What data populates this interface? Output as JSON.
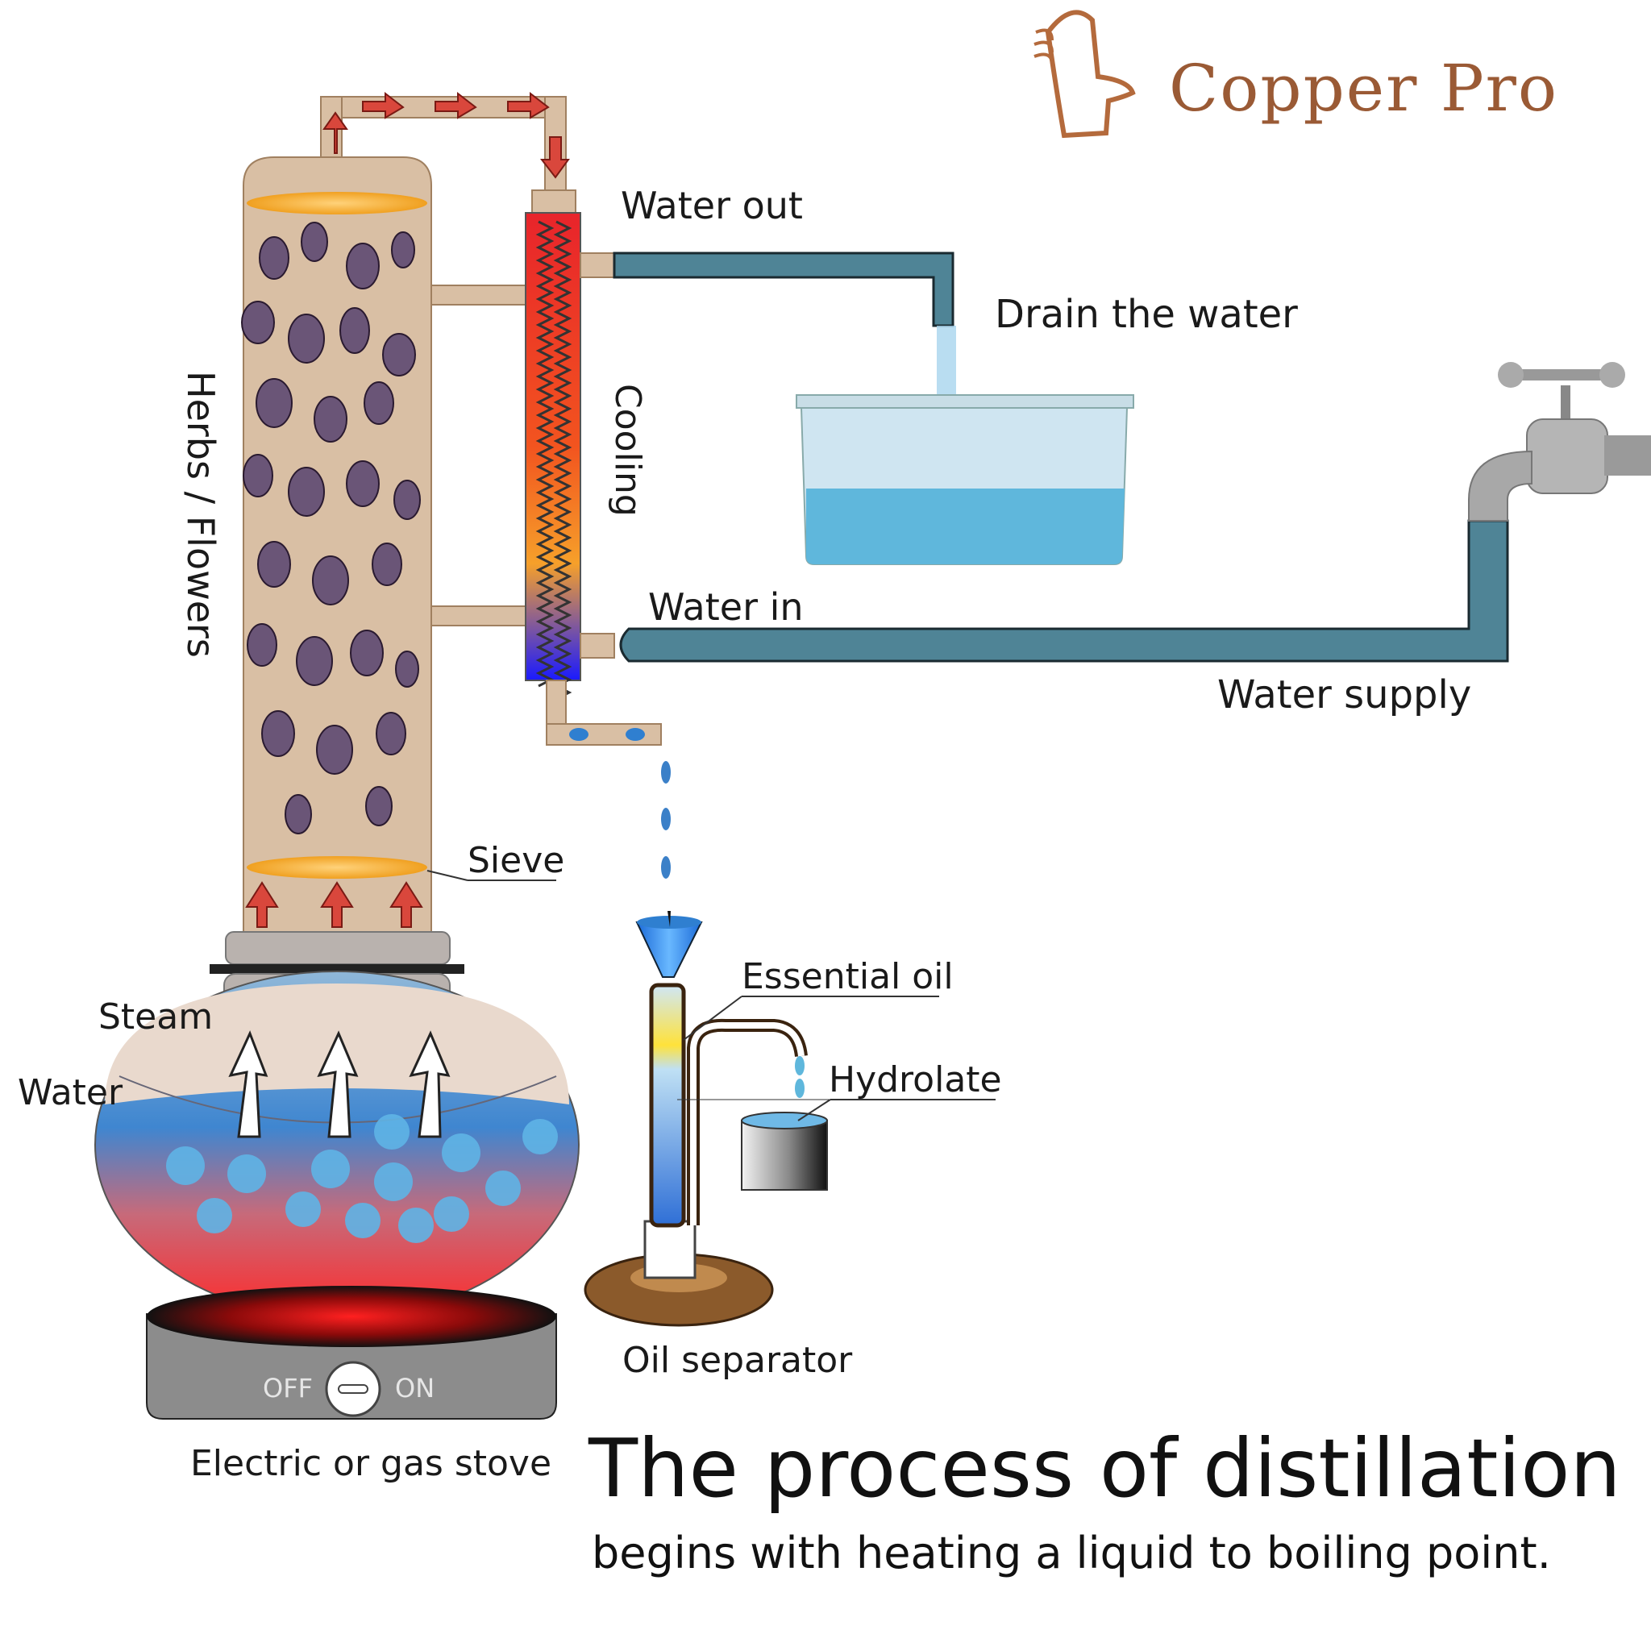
{
  "brand": {
    "name": "Copper Pro"
  },
  "labels": {
    "herbs": "Herbs / Flowers",
    "cooling": "Cooling",
    "water_out": "Water out",
    "drain": "Drain the water",
    "water_in": "Water in",
    "water_supply": "Water supply",
    "sieve": "Sieve",
    "steam": "Steam",
    "water": "Water",
    "essential_oil": "Essential oil",
    "hydrolate": "Hydrolate",
    "oil_separator": "Oil separator",
    "stove": "Electric or gas stove",
    "stove_off": "OFF",
    "stove_on": "ON"
  },
  "caption": {
    "title": "The process of distillation",
    "subtitle": "begins with heating a liquid to boiling point."
  },
  "colors": {
    "copper": "#d9bfa4",
    "pipe": "#4f8496",
    "arrow": "#d9473c",
    "brand": "#9a5a35",
    "water": "#5fb7dc"
  }
}
